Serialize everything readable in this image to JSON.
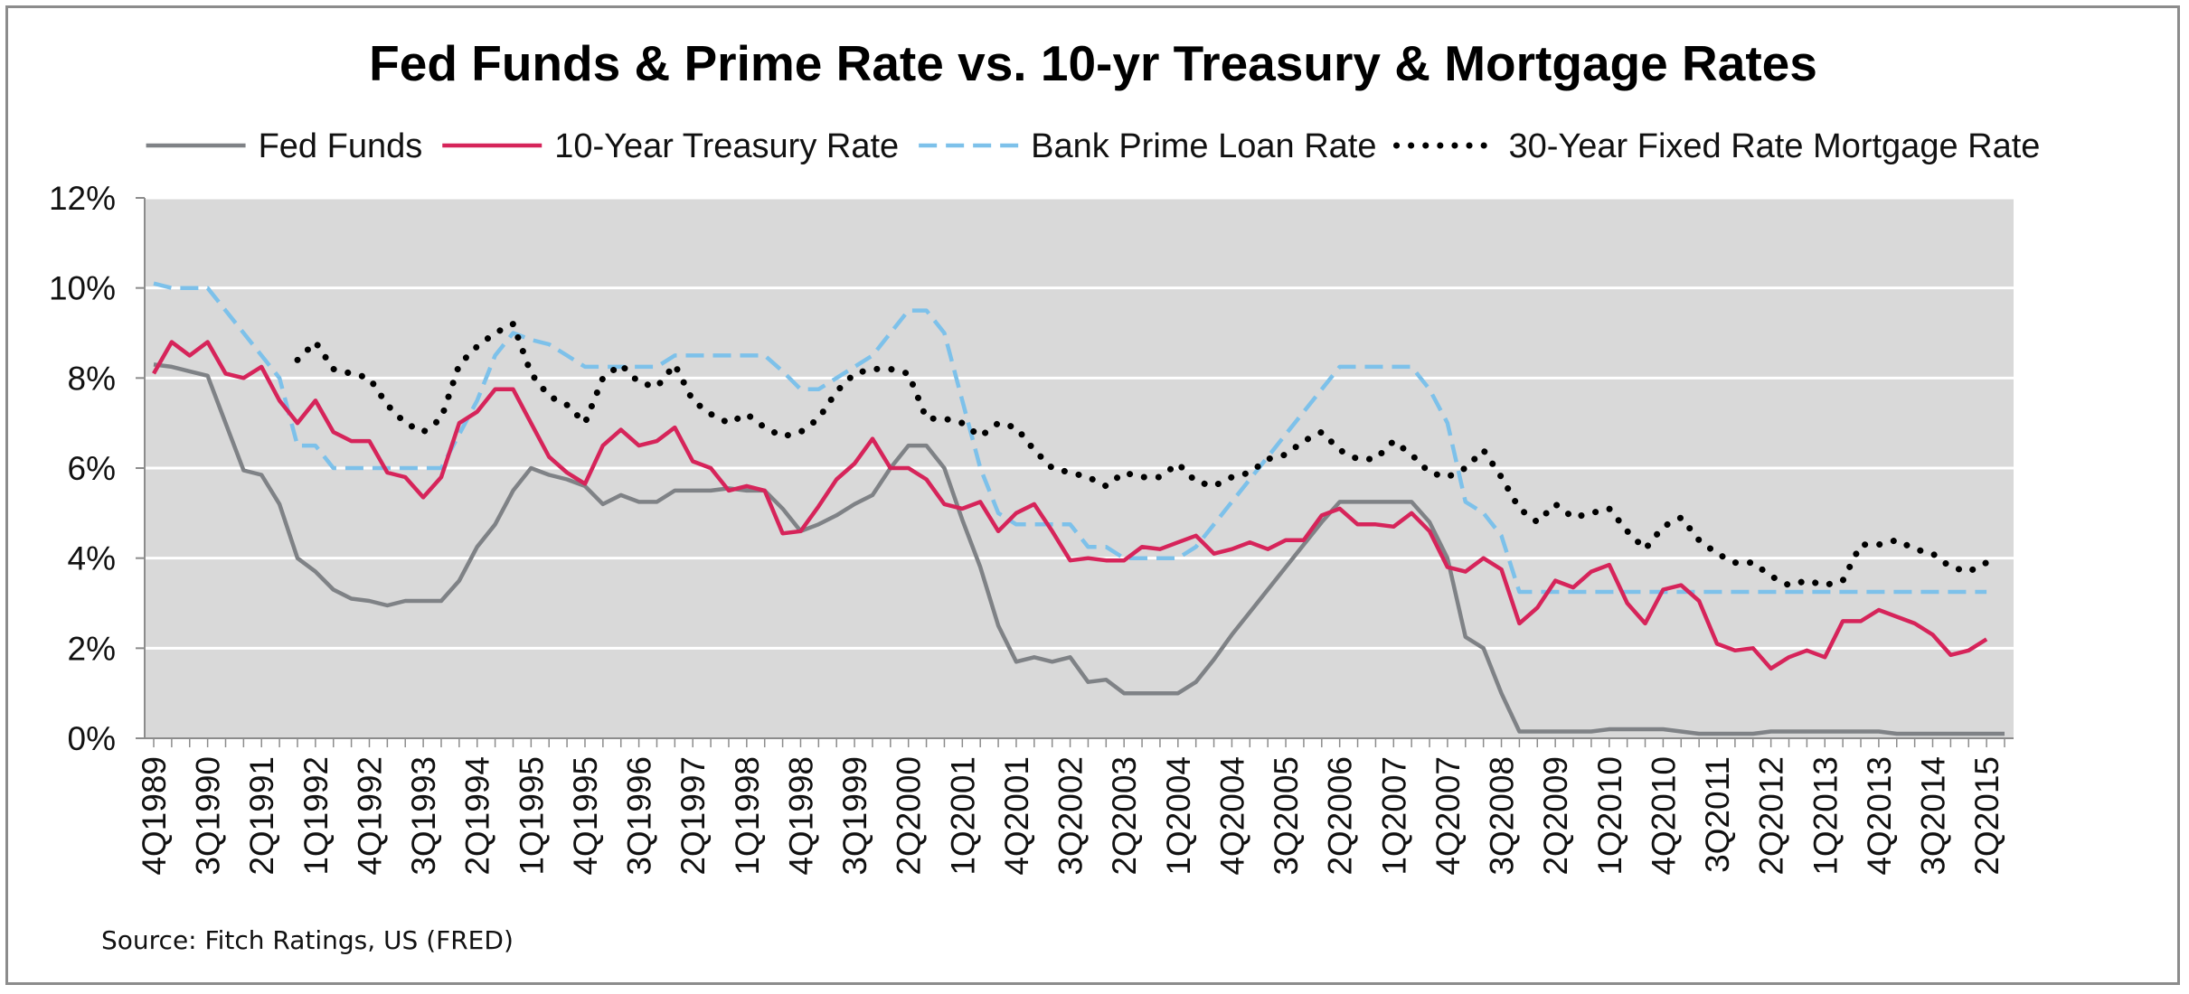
{
  "chart_data": {
    "type": "line",
    "title": "Fed Funds & Prime Rate vs. 10-yr Treasury & Mortgage Rates",
    "xlabel": "",
    "ylabel": "",
    "ylim": [
      0,
      12
    ],
    "y_ticks": [
      "0%",
      "2%",
      "4%",
      "6%",
      "8%",
      "10%",
      "12%"
    ],
    "x_tick_labels": [
      "4Q1989",
      "3Q1990",
      "2Q1991",
      "1Q1992",
      "4Q1992",
      "3Q1993",
      "2Q1994",
      "1Q1995",
      "4Q1995",
      "3Q1996",
      "2Q1997",
      "1Q1998",
      "4Q1998",
      "3Q1999",
      "2Q2000",
      "1Q2001",
      "4Q2001",
      "3Q2002",
      "2Q2003",
      "1Q2004",
      "4Q2004",
      "3Q2005",
      "2Q2006",
      "1Q2007",
      "4Q2007",
      "3Q2008",
      "2Q2009",
      "1Q2010",
      "4Q2010",
      "3Q2011",
      "2Q2012",
      "1Q2013",
      "4Q2013",
      "3Q2014",
      "2Q2015"
    ],
    "legend_position": "top",
    "grid": true,
    "background": "#d9d9d9",
    "series": [
      {
        "name": "Fed Funds",
        "color": "#7f8286",
        "style": "solid",
        "values": [
          8.3,
          8.25,
          8.15,
          8.05,
          7.0,
          5.95,
          5.85,
          5.2,
          4.0,
          3.7,
          3.3,
          3.1,
          3.05,
          2.95,
          3.05,
          3.05,
          3.05,
          3.5,
          4.25,
          4.75,
          5.5,
          6.0,
          5.85,
          5.75,
          5.6,
          5.2,
          5.4,
          5.25,
          5.25,
          5.5,
          5.5,
          5.5,
          5.55,
          5.5,
          5.5,
          5.1,
          4.6,
          4.75,
          4.95,
          5.2,
          5.4,
          6.0,
          6.5,
          6.5,
          6.0,
          4.85,
          3.8,
          2.5,
          1.7,
          1.8,
          1.7,
          1.8,
          1.25,
          1.3,
          1.0,
          1.0,
          1.0,
          1.0,
          1.25,
          1.75,
          2.3,
          2.8,
          3.3,
          3.8,
          4.3,
          4.8,
          5.25,
          5.25,
          5.25,
          5.25,
          5.25,
          4.8,
          4.0,
          2.25,
          2.0,
          1.0,
          0.15,
          0.15,
          0.15,
          0.15,
          0.15,
          0.2,
          0.2,
          0.2,
          0.2,
          0.15,
          0.1,
          0.1,
          0.1,
          0.1,
          0.15,
          0.15,
          0.15,
          0.15,
          0.15,
          0.15,
          0.15,
          0.1,
          0.1,
          0.1,
          0.1,
          0.1,
          0.1,
          0.1
        ]
      },
      {
        "name": "10-Year Treasury Rate",
        "color": "#d6245a",
        "style": "solid",
        "values": [
          8.1,
          8.8,
          8.5,
          8.8,
          8.1,
          8.0,
          8.25,
          7.5,
          7.0,
          7.5,
          6.8,
          6.6,
          6.6,
          5.9,
          5.8,
          5.35,
          5.8,
          7.0,
          7.25,
          7.75,
          7.75,
          7.0,
          6.25,
          5.9,
          5.65,
          6.5,
          6.85,
          6.5,
          6.6,
          6.9,
          6.15,
          6.0,
          5.5,
          5.6,
          5.5,
          4.55,
          4.6,
          5.15,
          5.75,
          6.1,
          6.65,
          6.0,
          6.0,
          5.75,
          5.2,
          5.1,
          5.25,
          4.6,
          5.0,
          5.2,
          4.6,
          3.95,
          4.0,
          3.95,
          3.95,
          4.25,
          4.2,
          4.35,
          4.5,
          4.1,
          4.2,
          4.35,
          4.2,
          4.4,
          4.4,
          4.95,
          5.1,
          4.75,
          4.75,
          4.7,
          5.0,
          4.6,
          3.8,
          3.7,
          4.0,
          3.75,
          2.55,
          2.9,
          3.5,
          3.35,
          3.7,
          3.85,
          3.0,
          2.55,
          3.3,
          3.4,
          3.05,
          2.1,
          1.95,
          2.0,
          1.55,
          1.8,
          1.95,
          1.8,
          2.6,
          2.6,
          2.85,
          2.7,
          2.55,
          2.3,
          1.85,
          1.95,
          2.2
        ]
      },
      {
        "name": "Bank Prime Loan Rate",
        "color": "#7dc1ea",
        "style": "dashed",
        "values": [
          10.1,
          10.0,
          10.0,
          10.0,
          9.5,
          9.0,
          8.5,
          8.0,
          6.5,
          6.5,
          6.0,
          6.0,
          6.0,
          6.0,
          6.0,
          6.0,
          6.0,
          6.75,
          7.5,
          8.5,
          9.0,
          8.85,
          8.75,
          8.5,
          8.25,
          8.25,
          8.25,
          8.25,
          8.25,
          8.5,
          8.5,
          8.5,
          8.5,
          8.5,
          8.5,
          8.15,
          7.75,
          7.75,
          8.0,
          8.25,
          8.5,
          9.0,
          9.5,
          9.5,
          9.0,
          7.5,
          6.0,
          5.0,
          4.75,
          4.75,
          4.75,
          4.75,
          4.25,
          4.25,
          4.0,
          4.0,
          4.0,
          4.0,
          4.25,
          4.75,
          5.25,
          5.75,
          6.25,
          6.75,
          7.25,
          7.75,
          8.25,
          8.25,
          8.25,
          8.25,
          8.25,
          7.75,
          7.0,
          5.25,
          5.0,
          4.5,
          3.25,
          3.25,
          3.25,
          3.25,
          3.25,
          3.25,
          3.25,
          3.25,
          3.25,
          3.25,
          3.25,
          3.25,
          3.25,
          3.25,
          3.25,
          3.25,
          3.25,
          3.25,
          3.25,
          3.25,
          3.25,
          3.25,
          3.25,
          3.25,
          3.25,
          3.25,
          3.25
        ]
      },
      {
        "name": "30-Year Fixed Rate Mortgage Rate",
        "color": "#000000",
        "style": "dotted",
        "values": [
          null,
          null,
          null,
          null,
          null,
          null,
          null,
          null,
          8.4,
          8.8,
          8.2,
          8.1,
          8.0,
          7.4,
          7.0,
          6.8,
          7.1,
          8.3,
          8.7,
          9.0,
          9.2,
          8.1,
          7.6,
          7.4,
          7.0,
          8.0,
          8.3,
          7.9,
          7.8,
          8.3,
          7.5,
          7.2,
          7.0,
          7.2,
          6.9,
          6.7,
          6.8,
          7.1,
          7.7,
          8.1,
          8.2,
          8.2,
          8.1,
          7.1,
          7.1,
          7.0,
          6.7,
          7.0,
          6.9,
          6.4,
          6.0,
          5.9,
          5.8,
          5.6,
          5.9,
          5.8,
          5.8,
          6.1,
          5.7,
          5.6,
          5.8,
          5.9,
          6.2,
          6.3,
          6.6,
          6.8,
          6.4,
          6.2,
          6.2,
          6.6,
          6.3,
          5.9,
          5.8,
          6.0,
          6.4,
          5.8,
          5.1,
          4.8,
          5.2,
          4.9,
          5.0,
          5.1,
          4.6,
          4.2,
          4.7,
          4.9,
          4.4,
          4.1,
          3.9,
          3.9,
          3.6,
          3.4,
          3.5,
          3.4,
          3.5,
          4.3,
          4.3,
          4.4,
          4.2,
          4.1,
          3.8,
          3.7,
          3.9
        ]
      }
    ],
    "source": "Source: Fitch Ratings, US (FRED)"
  }
}
